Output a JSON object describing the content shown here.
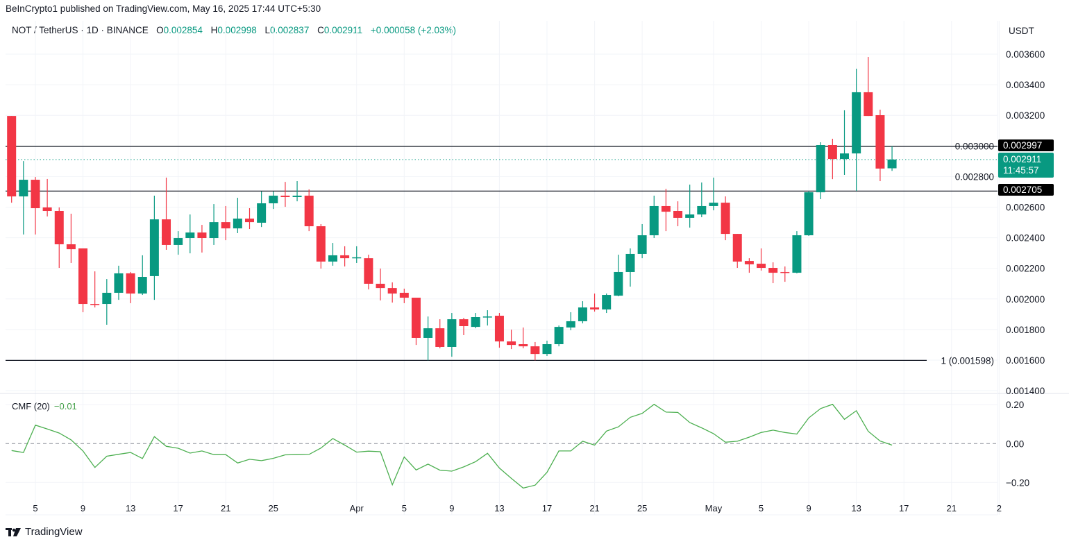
{
  "header": {
    "published": "BeInCrypto1 published on TradingView.com, May 16, 2025 17:44 UTC+5:30",
    "symbol": "NOT / TetherUS · 1D · BINANCE",
    "o_label": "O",
    "o_value": "0.002854",
    "h_label": "H",
    "h_value": "0.002998",
    "l_label": "L",
    "l_value": "0.002837",
    "c_label": "C",
    "c_value": "0.002911",
    "change": "+0.000058 (+2.03%)",
    "currency": "USDT"
  },
  "badges": {
    "resistance": "0.002997",
    "last_price": "0.002911",
    "countdown": "11:45:57",
    "support": "0.002705"
  },
  "footer": {
    "brand": "TradingView"
  },
  "colors": {
    "up": "#089981",
    "down": "#F23645",
    "cmf": "#4CAF50",
    "level_line": "#131722",
    "badge_bg": "#000000",
    "last_price_bg": "#089981"
  },
  "chart_data": [
    {
      "type": "candlestick",
      "title": "NOT / TetherUS · 1D · BINANCE",
      "ylim": [
        0.001382,
        0.003818
      ],
      "yticks": [
        "0.003600",
        "0.003400",
        "0.003200",
        "0.003000",
        "0.002800",
        "0.002600",
        "0.002400",
        "0.002200",
        "0.002000",
        "0.001800",
        "0.001600",
        "0.001400"
      ],
      "xticks": [
        {
          "date": "2025-03-05",
          "label": "5"
        },
        {
          "date": "2025-03-09",
          "label": "9"
        },
        {
          "date": "2025-03-13",
          "label": "13"
        },
        {
          "date": "2025-03-17",
          "label": "17"
        },
        {
          "date": "2025-03-21",
          "label": "21"
        },
        {
          "date": "2025-03-25",
          "label": "25"
        },
        {
          "date": "2025-04-01",
          "label": "Apr"
        },
        {
          "date": "2025-04-05",
          "label": "5"
        },
        {
          "date": "2025-04-09",
          "label": "9"
        },
        {
          "date": "2025-04-13",
          "label": "13"
        },
        {
          "date": "2025-04-17",
          "label": "17"
        },
        {
          "date": "2025-04-21",
          "label": "21"
        },
        {
          "date": "2025-04-25",
          "label": "25"
        },
        {
          "date": "2025-05-01",
          "label": "May"
        },
        {
          "date": "2025-05-05",
          "label": "5"
        },
        {
          "date": "2025-05-09",
          "label": "9"
        },
        {
          "date": "2025-05-13",
          "label": "13"
        },
        {
          "date": "2025-05-17",
          "label": "17"
        },
        {
          "date": "2025-05-21",
          "label": "21"
        },
        {
          "date": "2025-05-25",
          "label": "2"
        }
      ],
      "horizontal_lines": [
        {
          "value": 0.002997,
          "style": "solid"
        },
        {
          "value": 0.002705,
          "style": "solid"
        },
        {
          "value": 0.001598,
          "style": "solid",
          "label": "1 (0.001598)"
        }
      ],
      "last_price_line": 0.002911,
      "columns": [
        "date",
        "open",
        "high",
        "low",
        "close"
      ],
      "candles": [
        [
          "2025-03-03",
          0.003196,
          0.003196,
          0.002629,
          0.00267
        ],
        [
          "2025-03-04",
          0.00267,
          0.002901,
          0.002421,
          0.002779
        ],
        [
          "2025-03-05",
          0.002779,
          0.002797,
          0.002421,
          0.002593
        ],
        [
          "2025-03-06",
          0.002598,
          0.002784,
          0.002539,
          0.002575
        ],
        [
          "2025-03-07",
          0.002575,
          0.002598,
          0.002203,
          0.002357
        ],
        [
          "2025-03-08",
          0.002357,
          0.002557,
          0.002235,
          0.002325
        ],
        [
          "2025-03-09",
          0.00233,
          0.00233,
          0.001913,
          0.001967
        ],
        [
          "2025-03-10",
          0.001967,
          0.00218,
          0.001944,
          0.00196
        ],
        [
          "2025-03-11",
          0.001967,
          0.00213,
          0.001831,
          0.00204
        ],
        [
          "2025-03-12",
          0.00204,
          0.002217,
          0.001994,
          0.002167
        ],
        [
          "2025-03-13",
          0.002167,
          0.002176,
          0.001972,
          0.002035
        ],
        [
          "2025-03-14",
          0.002035,
          0.002285,
          0.002026,
          0.002144
        ],
        [
          "2025-03-15",
          0.002149,
          0.002675,
          0.001994,
          0.00252
        ],
        [
          "2025-03-16",
          0.00252,
          0.002793,
          0.002321,
          0.002353
        ],
        [
          "2025-03-17",
          0.002353,
          0.002443,
          0.002289,
          0.002398
        ],
        [
          "2025-03-18",
          0.002398,
          0.002552,
          0.002298,
          0.002434
        ],
        [
          "2025-03-19",
          0.002434,
          0.002484,
          0.002303,
          0.002398
        ],
        [
          "2025-03-20",
          0.002398,
          0.00262,
          0.002353,
          0.002502
        ],
        [
          "2025-03-21",
          0.002502,
          0.002607,
          0.002384,
          0.002461
        ],
        [
          "2025-03-22",
          0.002461,
          0.002661,
          0.00243,
          0.002525
        ],
        [
          "2025-03-23",
          0.002525,
          0.002593,
          0.002457,
          0.002502
        ],
        [
          "2025-03-24",
          0.002498,
          0.002702,
          0.00247,
          0.002625
        ],
        [
          "2025-03-25",
          0.002625,
          0.002702,
          0.002588,
          0.002675
        ],
        [
          "2025-03-26",
          0.002675,
          0.002765,
          0.002602,
          0.002666
        ],
        [
          "2025-03-27",
          0.002666,
          0.00277,
          0.002638,
          0.002675
        ],
        [
          "2025-03-28",
          0.002675,
          0.002716,
          0.002443,
          0.002475
        ],
        [
          "2025-03-29",
          0.002475,
          0.002489,
          0.002198,
          0.002244
        ],
        [
          "2025-03-30",
          0.002244,
          0.002366,
          0.002217,
          0.002285
        ],
        [
          "2025-03-31",
          0.002285,
          0.002344,
          0.002212,
          0.002266
        ],
        [
          "2025-04-01",
          0.00227,
          0.002344,
          0.002235,
          0.002272
        ],
        [
          "2025-04-02",
          0.002266,
          0.002289,
          0.002062,
          0.002099
        ],
        [
          "2025-04-03",
          0.002099,
          0.002198,
          0.00199,
          0.002071
        ],
        [
          "2025-04-04",
          0.002071,
          0.002108,
          0.001976,
          0.002035
        ],
        [
          "2025-04-05",
          0.00204,
          0.002067,
          0.001972,
          0.002008
        ],
        [
          "2025-04-06",
          0.002008,
          0.002008,
          0.001699,
          0.001745
        ],
        [
          "2025-04-07",
          0.001745,
          0.001885,
          0.001598,
          0.001808
        ],
        [
          "2025-04-08",
          0.001808,
          0.001867,
          0.001677,
          0.001686
        ],
        [
          "2025-04-09",
          0.001686,
          0.001908,
          0.001622,
          0.001867
        ],
        [
          "2025-04-10",
          0.001867,
          0.001876,
          0.001763,
          0.001822
        ],
        [
          "2025-04-11",
          0.001817,
          0.001908,
          0.001808,
          0.001881
        ],
        [
          "2025-04-12",
          0.001881,
          0.001926,
          0.001826,
          0.001885
        ],
        [
          "2025-04-13",
          0.00189,
          0.001908,
          0.001681,
          0.001722
        ],
        [
          "2025-04-14",
          0.001722,
          0.001799,
          0.001672,
          0.001699
        ],
        [
          "2025-04-15",
          0.001704,
          0.001813,
          0.001677,
          0.00169
        ],
        [
          "2025-04-16",
          0.00169,
          0.001718,
          0.001598,
          0.00164
        ],
        [
          "2025-04-17",
          0.00164,
          0.001727,
          0.001627,
          0.001704
        ],
        [
          "2025-04-18",
          0.001704,
          0.001826,
          0.00169,
          0.001817
        ],
        [
          "2025-04-19",
          0.001813,
          0.001913,
          0.001795,
          0.001854
        ],
        [
          "2025-04-20",
          0.001854,
          0.001985,
          0.00184,
          0.001944
        ],
        [
          "2025-04-21",
          0.001944,
          0.002035,
          0.001917,
          0.001931
        ],
        [
          "2025-04-22",
          0.001931,
          0.002035,
          0.001908,
          0.002026
        ],
        [
          "2025-04-23",
          0.002021,
          0.002289,
          0.002017,
          0.002176
        ],
        [
          "2025-04-24",
          0.002176,
          0.00233,
          0.00208,
          0.002294
        ],
        [
          "2025-04-25",
          0.002294,
          0.002489,
          0.002266,
          0.002416
        ],
        [
          "2025-04-26",
          0.002416,
          0.002675,
          0.002398,
          0.002607
        ],
        [
          "2025-04-27",
          0.002607,
          0.00272,
          0.002443,
          0.00257
        ],
        [
          "2025-04-28",
          0.002575,
          0.002638,
          0.002475,
          0.00253
        ],
        [
          "2025-04-29",
          0.00253,
          0.002747,
          0.002466,
          0.002552
        ],
        [
          "2025-04-30",
          0.002552,
          0.002761,
          0.002534,
          0.002607
        ],
        [
          "2025-05-01",
          0.002607,
          0.002793,
          0.002579,
          0.002629
        ],
        [
          "2025-05-02",
          0.002629,
          0.00267,
          0.002384,
          0.002425
        ],
        [
          "2025-05-03",
          0.002425,
          0.002425,
          0.002203,
          0.002244
        ],
        [
          "2025-05-04",
          0.002248,
          0.002266,
          0.002171,
          0.002226
        ],
        [
          "2025-05-05",
          0.00223,
          0.00233,
          0.002185,
          0.002203
        ],
        [
          "2025-05-06",
          0.002203,
          0.002239,
          0.002103,
          0.002171
        ],
        [
          "2025-05-07",
          0.002176,
          0.002212,
          0.002112,
          0.002171
        ],
        [
          "2025-05-08",
          0.002171,
          0.002443,
          0.002167,
          0.002416
        ],
        [
          "2025-05-09",
          0.002416,
          0.002706,
          0.002412,
          0.002697
        ],
        [
          "2025-05-10",
          0.002697,
          0.003024,
          0.002652,
          0.003006
        ],
        [
          "2025-05-11",
          0.003006,
          0.003047,
          0.002783,
          0.002915
        ],
        [
          "2025-05-12",
          0.002915,
          0.003233,
          0.002811,
          0.002951
        ],
        [
          "2025-05-13",
          0.002951,
          0.003505,
          0.002706,
          0.003351
        ],
        [
          "2025-05-14",
          0.003351,
          0.003582,
          0.003196,
          0.003196
        ],
        [
          "2025-05-15",
          0.003201,
          0.003237,
          0.00277,
          0.002852
        ],
        [
          "2025-05-16",
          0.002854,
          0.002998,
          0.002837,
          0.002911
        ]
      ]
    },
    {
      "type": "line",
      "title": "CMF (20)",
      "current_value": "−0.01",
      "ylim": [
        -0.274,
        0.258
      ],
      "yticks": [
        "0.20",
        "0.00",
        "−0.20"
      ],
      "zero_line": "dashed",
      "start_date": "2025-03-03",
      "values": [
        -0.036,
        -0.046,
        0.095,
        0.075,
        0.054,
        0.019,
        -0.038,
        -0.123,
        -0.065,
        -0.055,
        -0.046,
        -0.077,
        0.036,
        -0.014,
        -0.024,
        -0.049,
        -0.038,
        -0.057,
        -0.057,
        -0.1,
        -0.081,
        -0.088,
        -0.076,
        -0.058,
        -0.057,
        -0.056,
        -0.023,
        0.026,
        -0.008,
        -0.044,
        -0.039,
        -0.042,
        -0.212,
        -0.069,
        -0.136,
        -0.106,
        -0.137,
        -0.142,
        -0.12,
        -0.093,
        -0.05,
        -0.126,
        -0.179,
        -0.229,
        -0.214,
        -0.148,
        -0.038,
        -0.038,
        0.012,
        -0.008,
        0.064,
        0.086,
        0.135,
        0.155,
        0.202,
        0.162,
        0.16,
        0.108,
        0.081,
        0.051,
        0.007,
        0.012,
        0.033,
        0.057,
        0.069,
        0.057,
        0.049,
        0.132,
        0.18,
        0.202,
        0.125,
        0.169,
        0.063,
        0.013,
        -0.008
      ]
    }
  ]
}
